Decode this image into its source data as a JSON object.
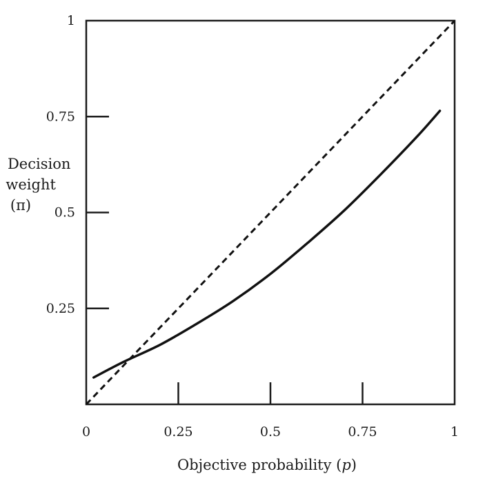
{
  "chart_data": {
    "type": "line",
    "title": "",
    "xlabel": "Objective probability (p)",
    "xlabel_parts": {
      "text": "Objective probability (",
      "var": "p",
      "close": ")"
    },
    "ylabel": "Decision weight (π)",
    "ylabel_lines": [
      "Decision",
      "weight",
      "(π)"
    ],
    "xlim": [
      0,
      1
    ],
    "ylim": [
      0,
      1
    ],
    "x_ticks": [
      0,
      0.25,
      0.5,
      0.75,
      1
    ],
    "x_tick_labels": [
      "0",
      "0.25",
      "0.5",
      "0.75",
      "1"
    ],
    "y_ticks": [
      0.25,
      0.5,
      0.75,
      1
    ],
    "y_tick_labels": [
      "0.25",
      "0.5",
      "0.75",
      "1"
    ],
    "grid": false,
    "legend": "none",
    "series": [
      {
        "style": "solid",
        "color": "#111111",
        "x": [
          0.02,
          0.1,
          0.2,
          0.3,
          0.4,
          0.5,
          0.6,
          0.7,
          0.8,
          0.9,
          0.96
        ],
        "y": [
          0.07,
          0.11,
          0.155,
          0.21,
          0.27,
          0.34,
          0.42,
          0.505,
          0.6,
          0.7,
          0.765
        ]
      },
      {
        "style": "dashed",
        "color": "#111111",
        "x": [
          0,
          1
        ],
        "y": [
          0,
          1
        ]
      }
    ]
  }
}
